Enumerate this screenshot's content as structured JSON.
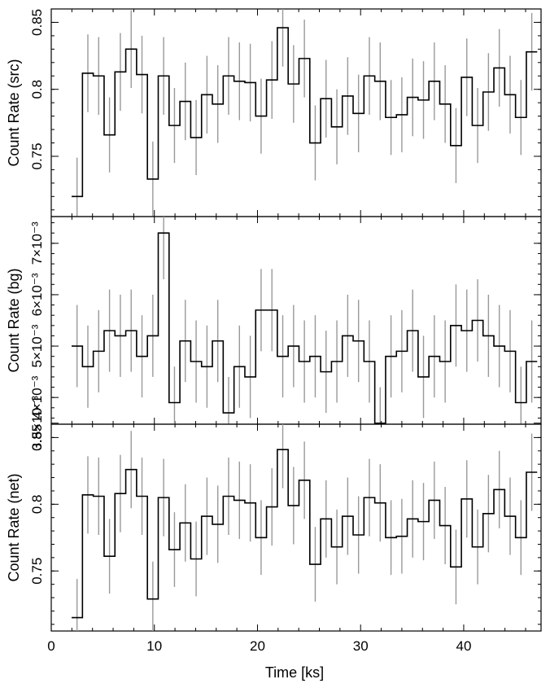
{
  "chart_data": {
    "type": "line",
    "style": "step",
    "xlabel": "Time [ks]",
    "xlim": [
      0,
      47.5
    ],
    "x_ticks": [
      0,
      10,
      20,
      30,
      40
    ],
    "x_ticks_labels": [
      "0",
      "10",
      "20",
      "30",
      "40"
    ],
    "bin_width": 1.05,
    "x": [
      2.5,
      3.55,
      4.6,
      5.65,
      6.7,
      7.75,
      8.8,
      9.85,
      10.9,
      11.95,
      13.0,
      14.05,
      15.1,
      16.15,
      17.2,
      18.25,
      19.3,
      20.35,
      21.4,
      22.45,
      23.5,
      24.55,
      25.6,
      26.65,
      27.7,
      28.75,
      29.8,
      30.85,
      31.9,
      32.95,
      34.0,
      35.05,
      36.1,
      37.15,
      38.2,
      39.25,
      40.3,
      41.35,
      42.4,
      43.45,
      44.5,
      45.55,
      46.6
    ],
    "line_color": "#000000",
    "error_bar_color": "#999999",
    "panels": [
      {
        "ylabel": "Count Rate (src)",
        "ylim": [
          0.705,
          0.86
        ],
        "y_ticks": [
          0.75,
          0.8,
          0.85
        ],
        "y_ticks_labels": [
          "0.75",
          "0.8",
          "0.85"
        ],
        "series": [
          {
            "values": [
              0.72,
              0.812,
              0.81,
              0.766,
              0.813,
              0.83,
              0.811,
              0.733,
              0.81,
              0.773,
              0.791,
              0.764,
              0.796,
              0.789,
              0.81,
              0.806,
              0.805,
              0.78,
              0.807,
              0.846,
              0.804,
              0.823,
              0.76,
              0.793,
              0.772,
              0.795,
              0.782,
              0.81,
              0.806,
              0.779,
              0.781,
              0.794,
              0.792,
              0.806,
              0.789,
              0.758,
              0.809,
              0.773,
              0.798,
              0.816,
              0.796,
              0.779,
              0.828
            ],
            "errors": [
              0.029,
              0.029,
              0.029,
              0.028,
              0.029,
              0.029,
              0.029,
              0.028,
              0.029,
              0.028,
              0.029,
              0.028,
              0.029,
              0.029,
              0.029,
              0.029,
              0.029,
              0.028,
              0.029,
              0.029,
              0.029,
              0.029,
              0.028,
              0.029,
              0.028,
              0.029,
              0.029,
              0.029,
              0.029,
              0.028,
              0.028,
              0.029,
              0.029,
              0.029,
              0.029,
              0.028,
              0.029,
              0.028,
              0.029,
              0.029,
              0.029,
              0.028,
              0.029
            ]
          }
        ]
      },
      {
        "ylabel": "Count Rate (bg)",
        "ylim": [
          0.00348,
          0.00752
        ],
        "y_ticks": [
          0.0035,
          0.004,
          0.005,
          0.006,
          0.007
        ],
        "y_ticks_labels": [
          "3.5×10⁻³",
          "4×10⁻³",
          "5×10⁻³",
          "6×10⁻³",
          "7×10⁻³"
        ],
        "series": [
          {
            "values": [
              0.005,
              0.0046,
              0.0049,
              0.0053,
              0.0052,
              0.0053,
              0.0048,
              0.0052,
              0.0072,
              0.0039,
              0.0051,
              0.0047,
              0.0046,
              0.0051,
              0.0037,
              0.0046,
              0.0044,
              0.0057,
              0.0057,
              0.0048,
              0.005,
              0.0047,
              0.0048,
              0.0045,
              0.0047,
              0.0052,
              0.0051,
              0.0047,
              0.0035,
              0.0048,
              0.0049,
              0.0053,
              0.0044,
              0.0048,
              0.0047,
              0.0054,
              0.0053,
              0.0055,
              0.0052,
              0.005,
              0.0049,
              0.0039,
              0.0047
            ],
            "errors": [
              0.0008,
              0.0008,
              0.0008,
              0.0008,
              0.0008,
              0.0008,
              0.0008,
              0.0008,
              0.0009,
              0.0007,
              0.0008,
              0.0008,
              0.0008,
              0.0008,
              0.0007,
              0.0008,
              0.0008,
              0.0008,
              0.0008,
              0.0008,
              0.0008,
              0.0008,
              0.0008,
              0.0008,
              0.0008,
              0.0008,
              0.0008,
              0.0008,
              0.0007,
              0.0008,
              0.0008,
              0.0008,
              0.0008,
              0.0008,
              0.0008,
              0.0008,
              0.0008,
              0.0008,
              0.0008,
              0.0008,
              0.0008,
              0.0007,
              0.0008
            ]
          }
        ]
      },
      {
        "ylabel": "Count Rate (net)",
        "ylim": [
          0.705,
          0.86
        ],
        "y_ticks": [
          0.75,
          0.8,
          0.85
        ],
        "y_ticks_labels": [
          "0.75",
          "0.8",
          "0.85"
        ],
        "series": [
          {
            "values": [
              0.715,
              0.807,
              0.806,
              0.761,
              0.808,
              0.826,
              0.806,
              0.729,
              0.805,
              0.766,
              0.786,
              0.759,
              0.791,
              0.785,
              0.806,
              0.803,
              0.801,
              0.775,
              0.798,
              0.841,
              0.799,
              0.818,
              0.755,
              0.789,
              0.768,
              0.791,
              0.777,
              0.805,
              0.801,
              0.775,
              0.776,
              0.789,
              0.787,
              0.803,
              0.784,
              0.753,
              0.804,
              0.768,
              0.793,
              0.811,
              0.791,
              0.775,
              0.824
            ],
            "errors": [
              0.029,
              0.029,
              0.029,
              0.028,
              0.029,
              0.029,
              0.029,
              0.028,
              0.029,
              0.028,
              0.029,
              0.028,
              0.029,
              0.029,
              0.029,
              0.029,
              0.029,
              0.028,
              0.029,
              0.029,
              0.029,
              0.029,
              0.028,
              0.029,
              0.028,
              0.029,
              0.029,
              0.029,
              0.029,
              0.028,
              0.028,
              0.029,
              0.029,
              0.029,
              0.029,
              0.028,
              0.029,
              0.028,
              0.029,
              0.029,
              0.029,
              0.028,
              0.029
            ]
          }
        ]
      }
    ]
  }
}
